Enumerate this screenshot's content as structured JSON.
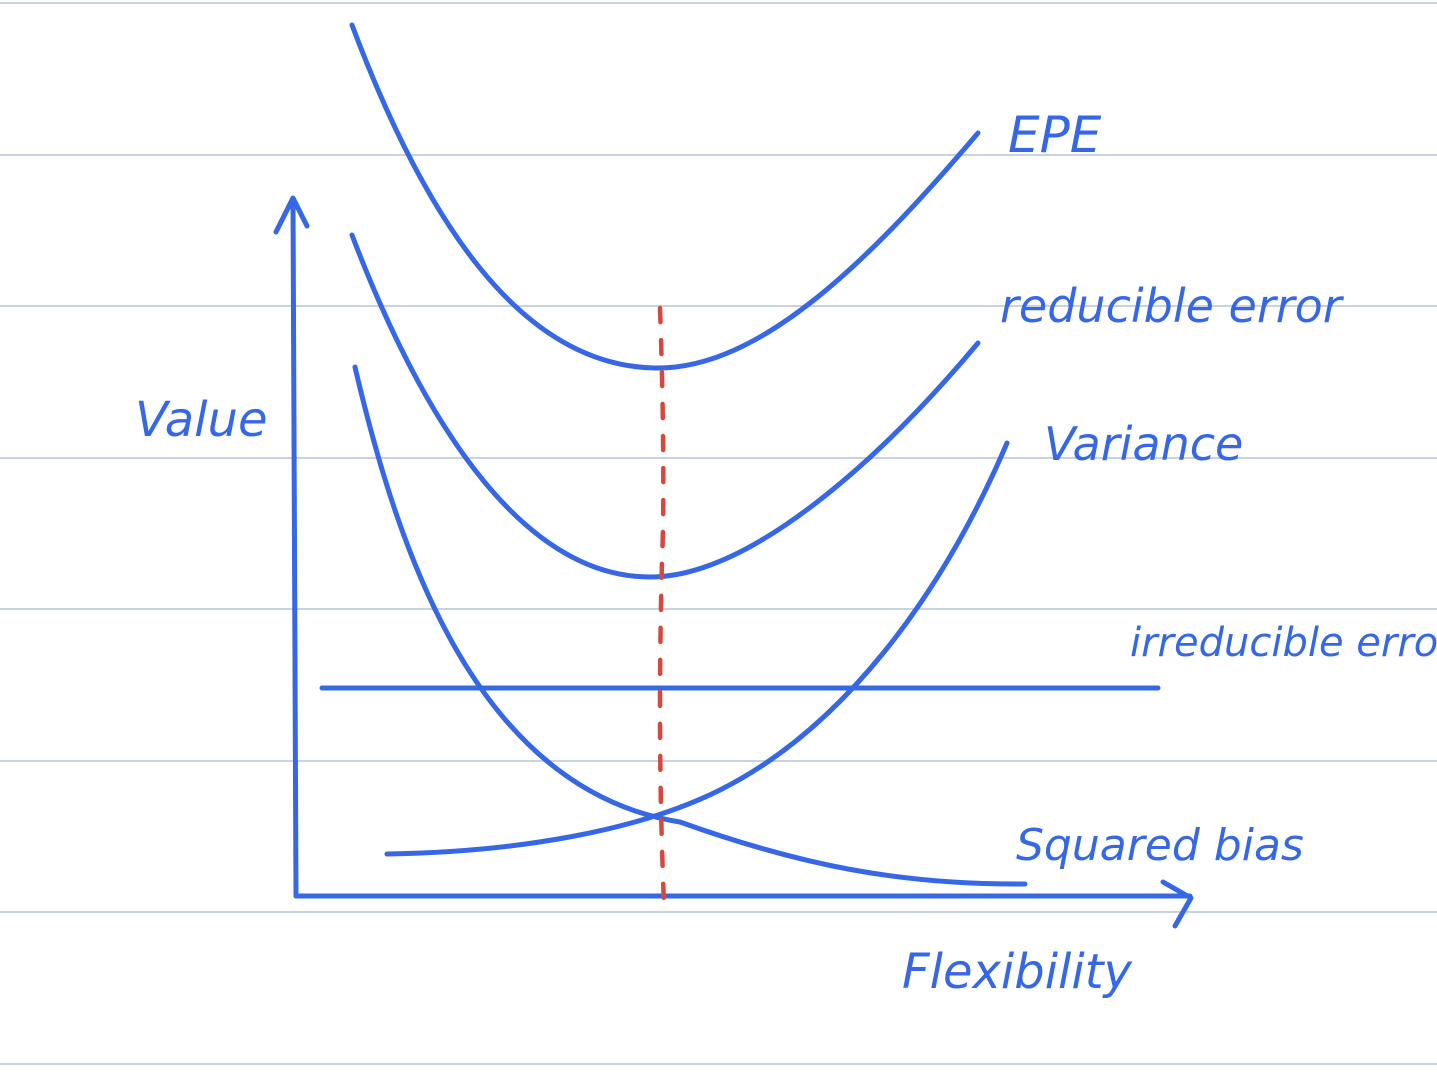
{
  "labels": {
    "y_axis": "Value",
    "x_axis": "Flexibility",
    "epe": "EPE",
    "reducible": "reducible error",
    "variance": "Variance",
    "irreducible": "irreducible error",
    "squared_bias": "Squared bias"
  },
  "curves": [
    {
      "id": "epe",
      "label": "EPE"
    },
    {
      "id": "reducible-error",
      "label": "reducible error"
    },
    {
      "id": "variance",
      "label": "Variance"
    },
    {
      "id": "irreducible-error",
      "label": "irreducible error"
    },
    {
      "id": "squared-bias",
      "label": "Squared bias"
    }
  ],
  "optimum_marker": {
    "style": "dashed",
    "color": "#d9463b"
  },
  "colors": {
    "ink": "#3567e6",
    "marker": "#d9463b",
    "ruled_line": "#b7c3d9",
    "background": "#ffffff"
  }
}
